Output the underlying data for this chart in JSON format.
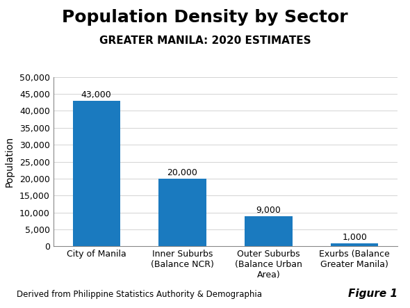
{
  "title": "Population Density by Sector",
  "subtitle": "GREATER MANILA: 2020 ESTIMATES",
  "categories": [
    "City of Manila",
    "Inner Suburbs\n(Balance NCR)",
    "Outer Suburbs\n(Balance Urban\nArea)",
    "Exurbs (Balance\nGreater Manila)"
  ],
  "values": [
    43000,
    20000,
    9000,
    1000
  ],
  "bar_labels": [
    "43,000",
    "20,000",
    "9,000",
    "1,000"
  ],
  "bar_color": "#1a7abf",
  "ylabel": "Population",
  "ylim": [
    0,
    50000
  ],
  "yticks": [
    0,
    5000,
    10000,
    15000,
    20000,
    25000,
    30000,
    35000,
    40000,
    45000,
    50000
  ],
  "ytick_labels": [
    "0",
    "5,000",
    "10,000",
    "15,000",
    "20,000",
    "25,000",
    "30,000",
    "35,000",
    "40,000",
    "45,000",
    "50,000"
  ],
  "footnote": "Derived from Philippine Statistics Authority & Demographia",
  "figure_label": "Figure 1",
  "title_fontsize": 18,
  "subtitle_fontsize": 11,
  "ylabel_fontsize": 10,
  "tick_fontsize": 9,
  "bar_label_fontsize": 9,
  "footnote_fontsize": 8.5,
  "figure_label_fontsize": 11,
  "background_color": "#ffffff"
}
